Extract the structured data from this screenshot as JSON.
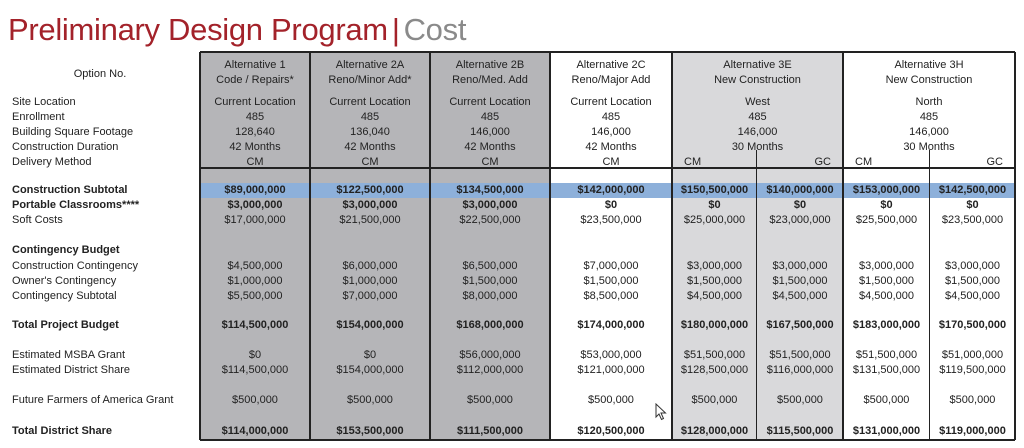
{
  "title": {
    "main": "Preliminary Design Program",
    "separator": "|",
    "sub": "Cost"
  },
  "colors": {
    "title_red": "#a3222a",
    "gray_col": "#b5b5b8",
    "light_gray_col": "#d9d9db",
    "highlight_blue": "#8db0da"
  },
  "option_label": "Option No.",
  "alternatives": [
    {
      "name": "Alternative 1",
      "desc": "Code / Repairs*"
    },
    {
      "name": "Alternative 2A",
      "desc": "Reno/Minor Add*"
    },
    {
      "name": "Alternative 2B",
      "desc": "Reno/Med. Add"
    },
    {
      "name": "Alternative 2C",
      "desc": "Reno/Major Add"
    },
    {
      "name": "Alternative 3E",
      "desc": "New Construction"
    },
    {
      "name": "Alternative 3H",
      "desc": "New Construction"
    }
  ],
  "info_rows": [
    {
      "label": "Site Location",
      "values": [
        "Current Location",
        "Current Location",
        "Current Location",
        "Current Location",
        "West",
        "North"
      ]
    },
    {
      "label": "Enrollment",
      "values": [
        "485",
        "485",
        "485",
        "485",
        "485",
        "485"
      ]
    },
    {
      "label": "Building Square Footage",
      "values": [
        "128,640",
        "136,040",
        "146,000",
        "146,000",
        "146,000",
        "146,000"
      ]
    },
    {
      "label": "Construction Duration",
      "values": [
        "42 Months",
        "42 Months",
        "42 Months",
        "42 Months",
        "30 Months",
        "30 Months"
      ]
    },
    {
      "label": "Delivery Method",
      "values": [
        "CM",
        "CM",
        "CM",
        "CM",
        "CM",
        "GC",
        "CM",
        "GC"
      ]
    }
  ],
  "cost_rows": [
    {
      "label": "Construction Subtotal",
      "bold": true,
      "values": [
        "$89,000,000",
        "$122,500,000",
        "$134,500,000",
        "$142,000,000",
        "$150,500,000",
        "$140,000,000",
        "$153,000,000",
        "$142,500,000"
      ]
    },
    {
      "label": "Portable Classrooms****",
      "bold": true,
      "values": [
        "$3,000,000",
        "$3,000,000",
        "$3,000,000",
        "$0",
        "$0",
        "$0",
        "$0",
        "$0"
      ]
    },
    {
      "label": "Soft Costs",
      "bold": false,
      "values": [
        "$17,000,000",
        "$21,500,000",
        "$22,500,000",
        "$23,500,000",
        "$25,000,000",
        "$23,000,000",
        "$25,500,000",
        "$23,500,000"
      ]
    },
    {
      "label": "Contingency Budget",
      "bold": true,
      "values": []
    },
    {
      "label": "Construction Contingency",
      "bold": false,
      "values": [
        "$4,500,000",
        "$6,000,000",
        "$6,500,000",
        "$7,000,000",
        "$3,000,000",
        "$3,000,000",
        "$3,000,000",
        "$3,000,000"
      ]
    },
    {
      "label": "Owner's Contingency",
      "bold": false,
      "values": [
        "$1,000,000",
        "$1,000,000",
        "$1,500,000",
        "$1,500,000",
        "$1,500,000",
        "$1,500,000",
        "$1,500,000",
        "$1,500,000"
      ]
    },
    {
      "label": "Contingency Subtotal",
      "bold": false,
      "values": [
        "$5,500,000",
        "$7,000,000",
        "$8,000,000",
        "$8,500,000",
        "$4,500,000",
        "$4,500,000",
        "$4,500,000",
        "$4,500,000"
      ]
    },
    {
      "label": "Total Project Budget",
      "bold": true,
      "values": [
        "$114,500,000",
        "$154,000,000",
        "$168,000,000",
        "$174,000,000",
        "$180,000,000",
        "$167,500,000",
        "$183,000,000",
        "$170,500,000"
      ]
    },
    {
      "label": "Estimated MSBA Grant",
      "bold": false,
      "values": [
        "$0",
        "$0",
        "$56,000,000",
        "$53,000,000",
        "$51,500,000",
        "$51,500,000",
        "$51,500,000",
        "$51,000,000"
      ]
    },
    {
      "label": "Estimated District Share",
      "bold": false,
      "values": [
        "$114,500,000",
        "$154,000,000",
        "$112,000,000",
        "$121,000,000",
        "$128,500,000",
        "$116,000,000",
        "$131,500,000",
        "$119,500,000"
      ]
    },
    {
      "label": "Future Farmers of America Grant",
      "bold": false,
      "values": [
        "$500,000",
        "$500,000",
        "$500,000",
        "$500,000",
        "$500,000",
        "$500,000",
        "$500,000",
        "$500,000"
      ]
    },
    {
      "label": "Total District Share",
      "bold": true,
      "values": [
        "$114,000,000",
        "$153,500,000",
        "$111,500,000",
        "$120,500,000",
        "$128,000,000",
        "$115,500,000",
        "$131,000,000",
        "$119,000,000"
      ]
    }
  ]
}
